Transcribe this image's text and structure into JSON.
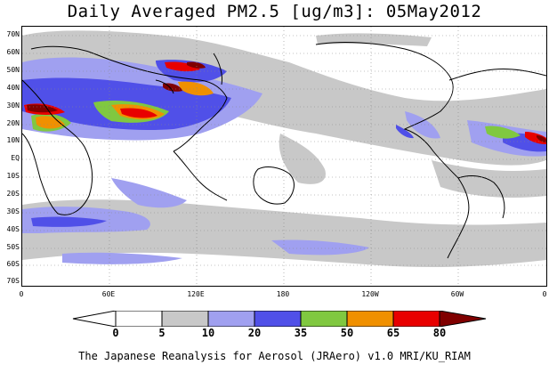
{
  "title": "Daily Averaged PM2.5 [ug/m3]: 05May2012",
  "footer": "The Japanese Reanalysis for Aerosol (JRAero) v1.0 MRI/KU_RIAM",
  "lat_labels": [
    "70N",
    "60N",
    "50N",
    "40N",
    "30N",
    "20N",
    "10N",
    "EQ",
    "10S",
    "20S",
    "30S",
    "40S",
    "50S",
    "60S",
    "70S"
  ],
  "lon_labels": [
    "0",
    "60E",
    "120E",
    "180",
    "120W",
    "60W",
    "0"
  ],
  "colorbar": {
    "labels": [
      "0",
      "5",
      "10",
      "20",
      "35",
      "50",
      "65",
      "80"
    ],
    "colors": [
      "#ffffff",
      "#c8c8c8",
      "#a0a0f0",
      "#5050e8",
      "#80c840",
      "#f09000",
      "#e80000",
      "#800000"
    ]
  }
}
